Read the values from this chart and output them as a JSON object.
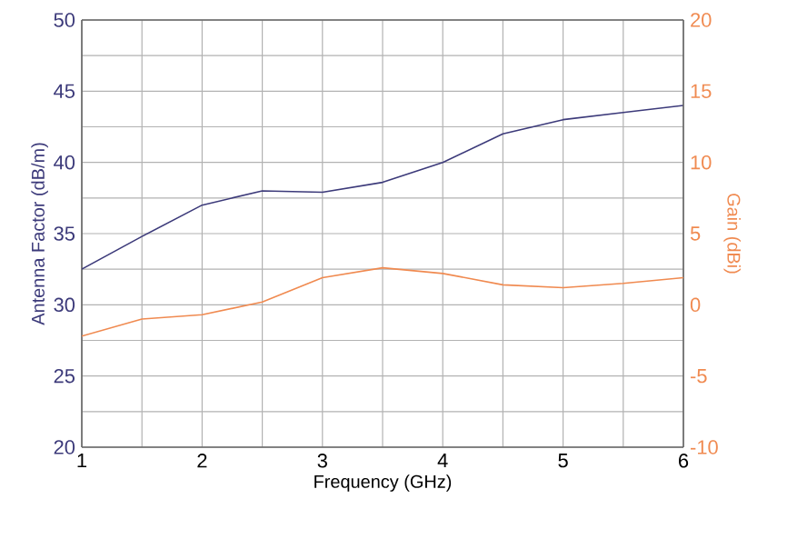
{
  "chart_data": {
    "type": "line",
    "xlabel": "Frequency (GHz)",
    "ylabel": "Antenna Factor (dB/m)",
    "y2label": "Gain (dBi)",
    "x": [
      1,
      1.5,
      2,
      2.5,
      3,
      3.5,
      4,
      4.5,
      5,
      5.5,
      6
    ],
    "series": [
      {
        "color": "#3c3a7a",
        "values": [
          32.5,
          34.8,
          37,
          38,
          37.9,
          38.6,
          40,
          42,
          43,
          43.5,
          44
        ]
      },
      {
        "color": "#f08a50",
        "axis": "y2",
        "values": [
          -2.2,
          -1.0,
          -0.7,
          0.2,
          1.9,
          2.6,
          2.2,
          1.4,
          1.2,
          1.5,
          1.9
        ]
      }
    ],
    "xlim": [
      1,
      6
    ],
    "xticks": [
      1,
      2,
      3,
      4,
      5,
      6
    ],
    "ylim": [
      20,
      50
    ],
    "yticks": [
      20,
      25,
      30,
      35,
      40,
      45,
      50
    ],
    "y2lim": [
      -10,
      20
    ],
    "y2ticks": [
      -10,
      -5,
      0,
      5,
      10,
      15,
      20
    ],
    "grid": true,
    "marker": "none",
    "line_style": "solid"
  }
}
